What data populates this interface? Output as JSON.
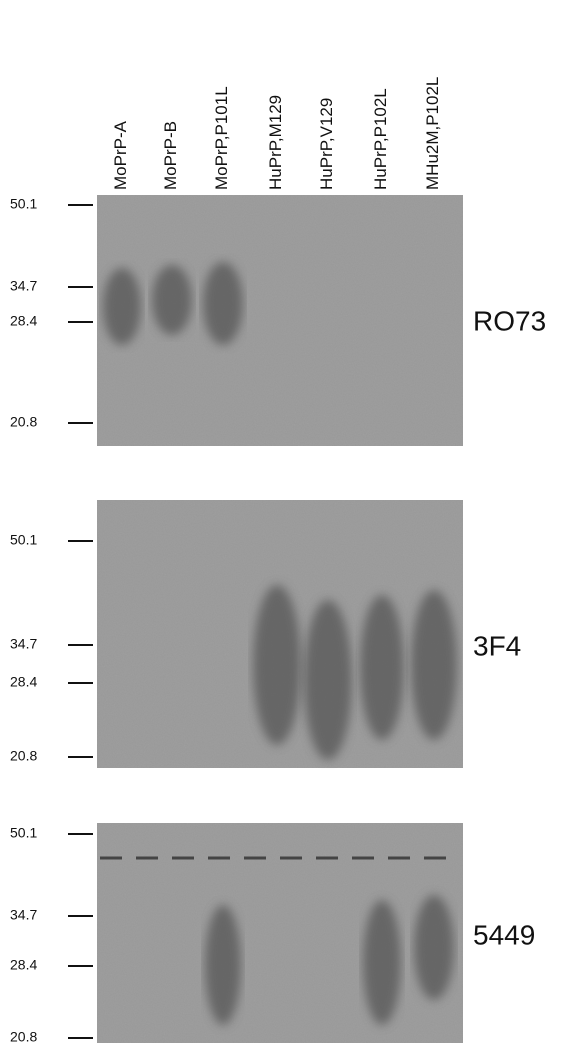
{
  "lanes": [
    "MoPrP-A",
    "MoPrP-B",
    "MoPrP,P101L",
    "HuPrP,M129",
    "HuPrP,V129",
    "HuPrP,P102L",
    "MHu2M,P102L"
  ],
  "panels": [
    {
      "label": "RO73",
      "markers": [
        "50.1",
        "34.7",
        "28.4",
        "20.8"
      ]
    },
    {
      "label": "3F4",
      "markers": [
        "50.1",
        "34.7",
        "28.4",
        "20.8"
      ]
    },
    {
      "label": "5449",
      "markers": [
        "50.1",
        "34.7",
        "28.4",
        "20.8"
      ]
    }
  ]
}
